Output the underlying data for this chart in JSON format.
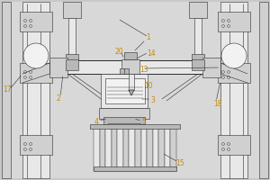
{
  "bg_color": "#c8c8c8",
  "line_color": "#2a2a2a",
  "fill_light": "#e8e8e8",
  "fill_mid": "#d0d0d0",
  "fill_dark": "#b8b8b8",
  "fill_white": "#f2f2f2",
  "label_color": "#cc8800",
  "fig_width": 3.0,
  "fig_height": 2.0,
  "dpi": 100
}
